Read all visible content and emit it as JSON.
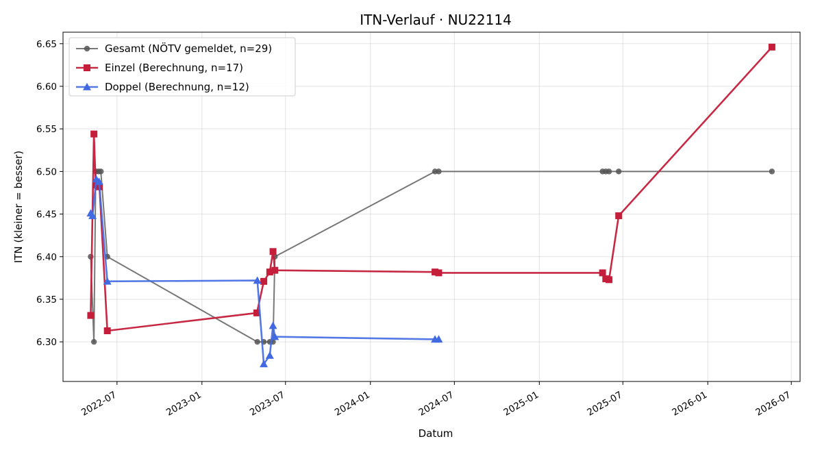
{
  "chart_data": {
    "type": "line",
    "title": "ITN-Verlauf · NU22114",
    "xlabel": "Datum",
    "ylabel": "ITN  (kleiner = besser)",
    "xlim": [
      "2022-03-06",
      "2026-07-20"
    ],
    "ylim": [
      6.2535,
      6.6635
    ],
    "x_ticks": [
      "2022-07-01",
      "2023-01-01",
      "2023-07-01",
      "2024-01-01",
      "2024-07-01",
      "2025-01-01",
      "2025-07-01",
      "2026-01-01",
      "2026-07-01"
    ],
    "x_tick_labels": [
      "2022-07",
      "2023-01",
      "2023-07",
      "2024-01",
      "2024-07",
      "2025-01",
      "2025-07",
      "2026-01",
      "2026-07"
    ],
    "y_ticks": [
      6.3,
      6.35,
      6.4,
      6.45,
      6.5,
      6.55,
      6.6,
      6.65
    ],
    "y_tick_labels": [
      "6.30",
      "6.35",
      "6.40",
      "6.45",
      "6.50",
      "6.55",
      "6.60",
      "6.65"
    ],
    "grid": true,
    "legend_position": "upper-left",
    "series": [
      {
        "name": "Gesamt (NÖTV gemeldet, n=29)",
        "color": "#555555",
        "marker": "circle",
        "points": [
          {
            "x": "2022-05-05",
            "y": 6.4
          },
          {
            "x": "2022-05-12",
            "y": 6.3
          },
          {
            "x": "2022-05-16",
            "y": 6.5
          },
          {
            "x": "2022-05-22",
            "y": 6.5
          },
          {
            "x": "2022-05-27",
            "y": 6.5
          },
          {
            "x": "2022-06-10",
            "y": 6.4
          },
          {
            "x": "2023-05-01",
            "y": 6.3
          },
          {
            "x": "2023-05-15",
            "y": 6.3
          },
          {
            "x": "2023-05-28",
            "y": 6.3
          },
          {
            "x": "2023-06-04",
            "y": 6.3
          },
          {
            "x": "2023-06-08",
            "y": 6.4
          },
          {
            "x": "2024-05-20",
            "y": 6.5
          },
          {
            "x": "2024-05-28",
            "y": 6.5
          },
          {
            "x": "2025-05-18",
            "y": 6.5
          },
          {
            "x": "2025-05-25",
            "y": 6.5
          },
          {
            "x": "2025-06-01",
            "y": 6.5
          },
          {
            "x": "2025-06-22",
            "y": 6.5
          },
          {
            "x": "2026-05-20",
            "y": 6.5
          }
        ]
      },
      {
        "name": "Einzel (Berechnung, n=17)",
        "color": "#c41e3a",
        "marker": "square",
        "points": [
          {
            "x": "2022-05-05",
            "y": 6.331
          },
          {
            "x": "2022-05-12",
            "y": 6.544
          },
          {
            "x": "2022-05-16",
            "y": 6.484
          },
          {
            "x": "2022-05-24",
            "y": 6.482
          },
          {
            "x": "2022-06-10",
            "y": 6.313
          },
          {
            "x": "2023-04-30",
            "y": 6.334
          },
          {
            "x": "2023-05-15",
            "y": 6.371
          },
          {
            "x": "2023-05-28",
            "y": 6.382
          },
          {
            "x": "2023-06-04",
            "y": 6.406
          },
          {
            "x": "2023-06-08",
            "y": 6.384
          },
          {
            "x": "2024-05-20",
            "y": 6.382
          },
          {
            "x": "2024-05-28",
            "y": 6.381
          },
          {
            "x": "2025-05-18",
            "y": 6.381
          },
          {
            "x": "2025-05-25",
            "y": 6.374
          },
          {
            "x": "2025-06-01",
            "y": 6.373
          },
          {
            "x": "2025-06-22",
            "y": 6.448
          },
          {
            "x": "2026-05-20",
            "y": 6.646
          }
        ]
      },
      {
        "name": "Doppel (Berechnung, n=12)",
        "color": "#4169e1",
        "marker": "triangle",
        "points": [
          {
            "x": "2022-05-05",
            "y": 6.451
          },
          {
            "x": "2022-05-09",
            "y": 6.448
          },
          {
            "x": "2022-05-17",
            "y": 6.491
          },
          {
            "x": "2022-05-23",
            "y": 6.488
          },
          {
            "x": "2022-06-10",
            "y": 6.371
          },
          {
            "x": "2023-05-01",
            "y": 6.372
          },
          {
            "x": "2023-05-15",
            "y": 6.274
          },
          {
            "x": "2023-05-28",
            "y": 6.284
          },
          {
            "x": "2023-06-04",
            "y": 6.319
          },
          {
            "x": "2023-06-08",
            "y": 6.306
          },
          {
            "x": "2024-05-20",
            "y": 6.303
          },
          {
            "x": "2024-05-28",
            "y": 6.303
          }
        ]
      }
    ]
  }
}
